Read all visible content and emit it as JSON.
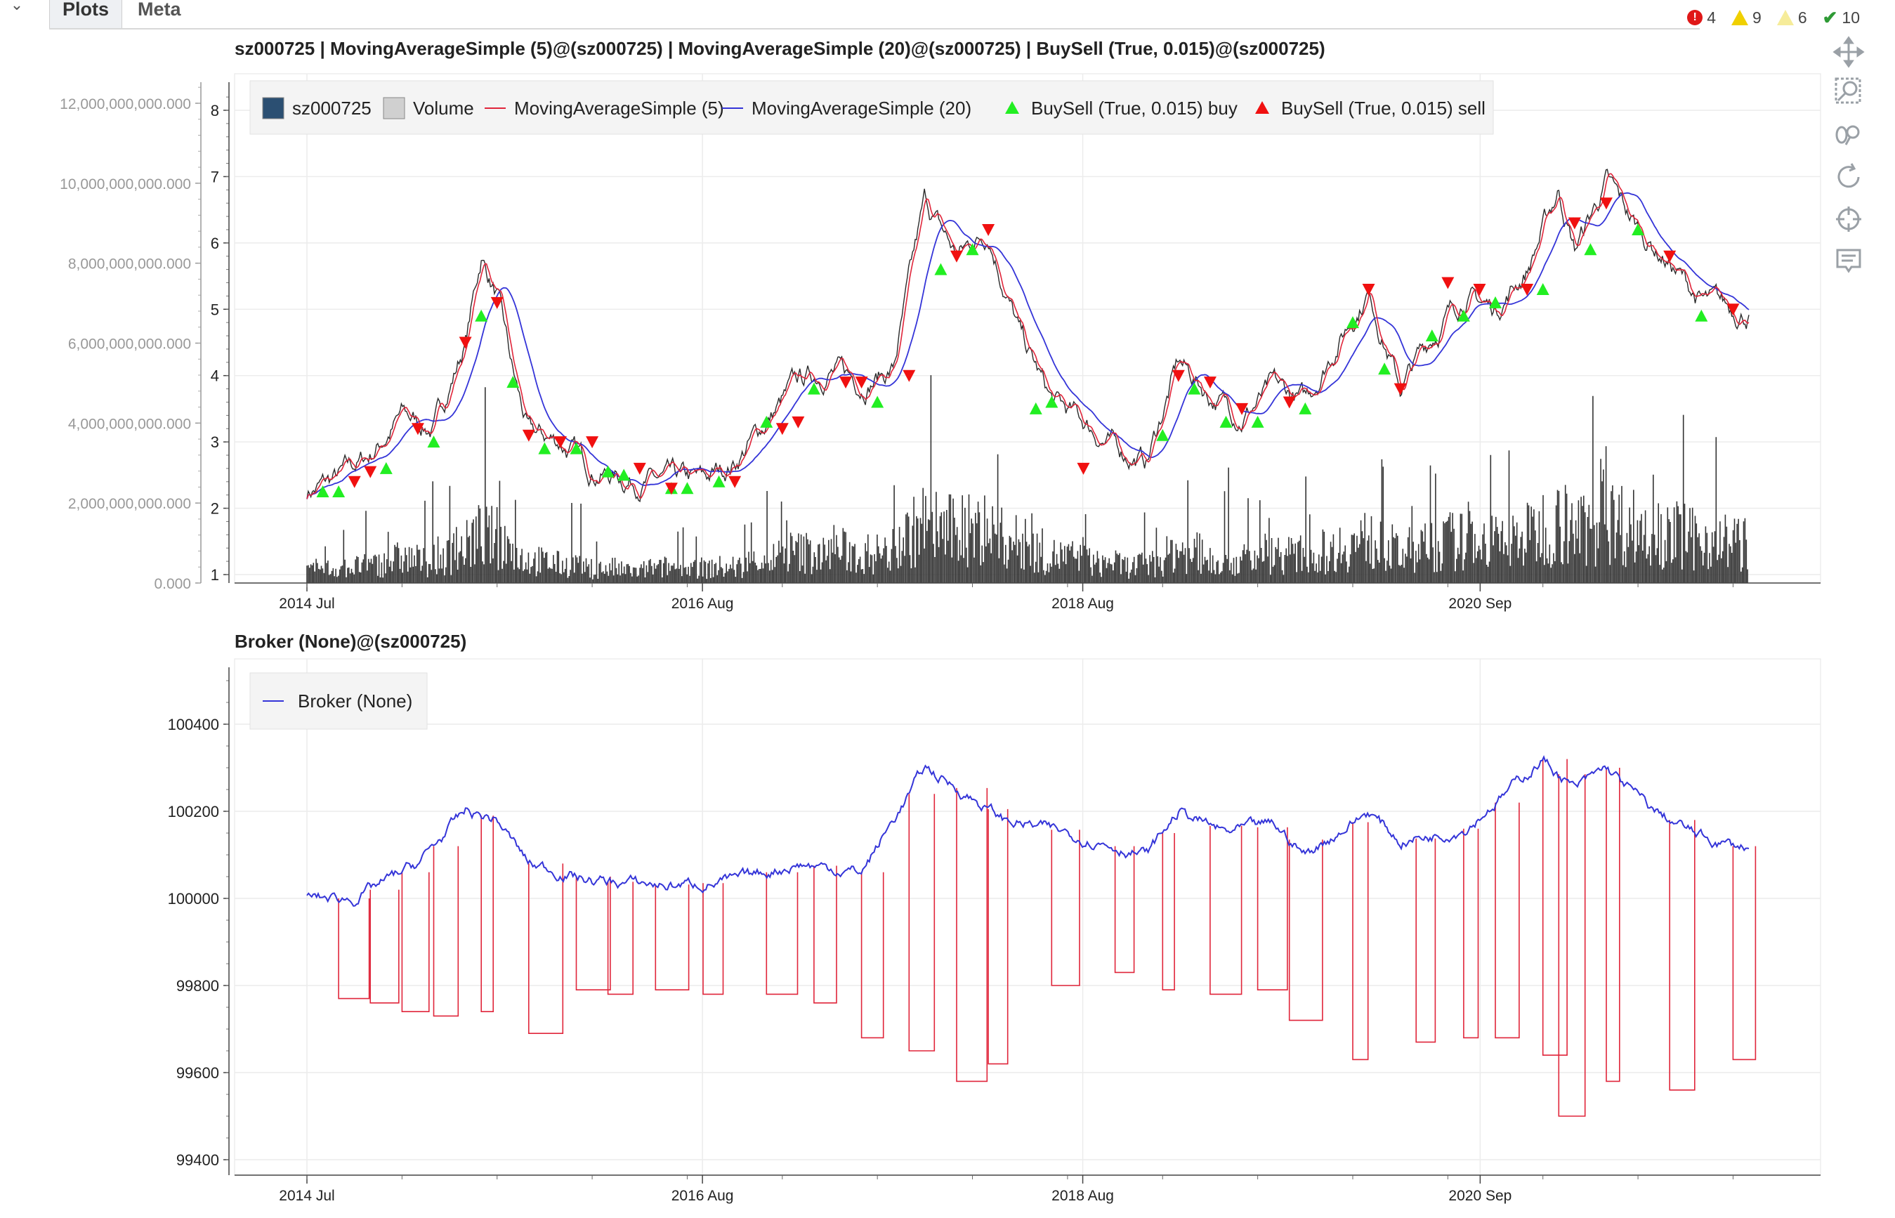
{
  "tabs": [
    "Plots",
    "Meta"
  ],
  "status": [
    {
      "icon": "error-icon",
      "count": "4",
      "color": "#e01818"
    },
    {
      "icon": "warning-icon",
      "count": "9",
      "color": "#f0d000"
    },
    {
      "icon": "info-warning-icon",
      "count": "6",
      "color": "#f6ec9a"
    },
    {
      "icon": "check-icon",
      "count": "10",
      "color": "#2e9a35"
    }
  ],
  "toolbar": [
    "pan-icon",
    "box-zoom-icon",
    "wheel-zoom-icon",
    "reset-icon",
    "crosshair-icon",
    "hover-icon"
  ],
  "plot1": {
    "title": "sz000725 | MovingAverageSimple (5)@(sz000725) | MovingAverageSimple (20)@(sz000725) | BuySell (True, 0.015)@(sz000725)",
    "legend": [
      {
        "label": "sz000725",
        "kind": "box",
        "color": "#2b4f72"
      },
      {
        "label": "Volume",
        "kind": "box",
        "color": "#d0d0d0"
      },
      {
        "label": "MovingAverageSimple (5)",
        "kind": "line",
        "color": "#e0253a"
      },
      {
        "label": "MovingAverageSimple (20)",
        "kind": "line",
        "color": "#3434d8"
      },
      {
        "label": "BuySell (True, 0.015) buy",
        "kind": "up",
        "color": "#22ee22"
      },
      {
        "label": "BuySell (True, 0.015) sell",
        "kind": "down",
        "color": "#f01010"
      }
    ],
    "volume_ticks": [
      "0.000",
      "2,000,000,000.000",
      "4,000,000,000.000",
      "6,000,000,000.000",
      "8,000,000,000.000",
      "10,000,000,000.000",
      "12,000,000,000.000"
    ],
    "price_ticks": [
      "1",
      "2",
      "3",
      "4",
      "5",
      "6",
      "7",
      "8"
    ],
    "x_ticks": [
      "2014 Jul",
      "2016 Aug",
      "2018 Aug",
      "2020 Sep"
    ]
  },
  "plot2": {
    "title": "Broker (None)@(sz000725)",
    "legend": [
      {
        "label": "Broker (None)",
        "color": "#3434d8"
      }
    ],
    "y_ticks": [
      "99400",
      "99600",
      "99800",
      "100000",
      "100200",
      "100400"
    ],
    "x_ticks": [
      "2014 Jul",
      "2016 Aug",
      "2018 Aug",
      "2020 Sep"
    ]
  },
  "chart_data": [
    {
      "type": "line",
      "title": "sz000725 | MovingAverageSimple (5)@(sz000725) | MovingAverageSimple (20)@(sz000725) | BuySell (True, 0.015)@(sz000725)",
      "xlabel": "",
      "ylabel": "",
      "x_range": [
        "2014-07",
        "2022-02"
      ],
      "price_ylim": [
        1,
        8.5
      ],
      "volume_ylim": [
        0,
        12500000000
      ],
      "grid": true,
      "legend_position": "top-left",
      "price_anchors": [
        [
          "2014-07",
          2.25
        ],
        [
          "2014-09",
          2.45
        ],
        [
          "2014-11",
          2.8
        ],
        [
          "2015-01",
          3.4
        ],
        [
          "2015-03",
          3.2
        ],
        [
          "2015-05",
          4.5
        ],
        [
          "2015-06",
          5.8
        ],
        [
          "2015-07",
          5.2
        ],
        [
          "2015-08",
          4.0
        ],
        [
          "2015-09",
          3.1
        ],
        [
          "2015-11",
          3.0
        ],
        [
          "2016-01",
          2.6
        ],
        [
          "2016-03",
          2.45
        ],
        [
          "2016-05",
          2.4
        ],
        [
          "2016-08",
          2.4
        ],
        [
          "2016-10",
          2.7
        ],
        [
          "2016-12",
          3.3
        ],
        [
          "2017-02",
          3.9
        ],
        [
          "2017-04",
          4.1
        ],
        [
          "2017-06",
          3.9
        ],
        [
          "2017-08",
          4.1
        ],
        [
          "2017-10",
          6.6
        ],
        [
          "2017-12",
          5.8
        ],
        [
          "2018-02",
          6.2
        ],
        [
          "2018-04",
          4.6
        ],
        [
          "2018-06",
          3.6
        ],
        [
          "2018-08",
          3.3
        ],
        [
          "2018-10",
          2.9
        ],
        [
          "2018-12",
          2.7
        ],
        [
          "2019-02",
          4.2
        ],
        [
          "2019-04",
          3.7
        ],
        [
          "2019-06",
          3.4
        ],
        [
          "2019-08",
          3.8
        ],
        [
          "2019-10",
          3.6
        ],
        [
          "2019-12",
          4.5
        ],
        [
          "2020-02",
          5.3
        ],
        [
          "2020-04",
          3.8
        ],
        [
          "2020-06",
          4.6
        ],
        [
          "2020-08",
          5.2
        ],
        [
          "2020-10",
          5.0
        ],
        [
          "2020-12",
          5.6
        ],
        [
          "2021-02",
          6.8
        ],
        [
          "2021-03",
          5.9
        ],
        [
          "2021-05",
          6.9
        ],
        [
          "2021-07",
          6.2
        ],
        [
          "2021-09",
          5.7
        ],
        [
          "2021-11",
          5.1
        ],
        [
          "2022-02",
          4.95
        ]
      ],
      "buy_signals": [
        [
          "2014-08",
          2.25
        ],
        [
          "2014-09",
          2.25
        ],
        [
          "2014-12",
          2.6
        ],
        [
          "2015-03",
          3.0
        ],
        [
          "2015-06",
          4.9
        ],
        [
          "2015-08",
          3.9
        ],
        [
          "2015-10",
          2.9
        ],
        [
          "2015-12",
          2.9
        ],
        [
          "2016-02",
          2.55
        ],
        [
          "2016-03",
          2.5
        ],
        [
          "2016-06",
          2.3
        ],
        [
          "2016-07",
          2.3
        ],
        [
          "2016-09",
          2.4
        ],
        [
          "2016-12",
          3.3
        ],
        [
          "2017-03",
          3.8
        ],
        [
          "2017-07",
          3.6
        ],
        [
          "2017-11",
          5.6
        ],
        [
          "2018-01",
          5.9
        ],
        [
          "2018-05",
          3.5
        ],
        [
          "2018-06",
          3.6
        ],
        [
          "2019-01",
          3.1
        ],
        [
          "2019-03",
          3.8
        ],
        [
          "2019-05",
          3.3
        ],
        [
          "2019-07",
          3.3
        ],
        [
          "2019-10",
          3.5
        ],
        [
          "2020-01",
          4.8
        ],
        [
          "2020-03",
          4.1
        ],
        [
          "2020-06",
          4.6
        ],
        [
          "2020-08",
          4.9
        ],
        [
          "2020-10",
          5.1
        ],
        [
          "2021-01",
          5.3
        ],
        [
          "2021-04",
          5.9
        ],
        [
          "2021-07",
          6.2
        ],
        [
          "2021-11",
          4.9
        ]
      ],
      "sell_signals": [
        [
          "2014-10",
          2.4
        ],
        [
          "2014-11",
          2.55
        ],
        [
          "2015-02",
          3.2
        ],
        [
          "2015-05",
          4.5
        ],
        [
          "2015-07",
          5.1
        ],
        [
          "2015-09",
          3.1
        ],
        [
          "2015-11",
          3.0
        ],
        [
          "2016-01",
          3.0
        ],
        [
          "2016-04",
          2.6
        ],
        [
          "2016-06",
          2.3
        ],
        [
          "2016-10",
          2.4
        ],
        [
          "2017-01",
          3.2
        ],
        [
          "2017-02",
          3.3
        ],
        [
          "2017-05",
          3.9
        ],
        [
          "2017-06",
          3.9
        ],
        [
          "2017-09",
          4.0
        ],
        [
          "2017-12",
          5.8
        ],
        [
          "2018-02",
          6.2
        ],
        [
          "2018-08",
          2.6
        ],
        [
          "2019-02",
          4.0
        ],
        [
          "2019-04",
          3.9
        ],
        [
          "2019-06",
          3.5
        ],
        [
          "2019-09",
          3.6
        ],
        [
          "2020-02",
          5.3
        ],
        [
          "2020-04",
          3.8
        ],
        [
          "2020-07",
          5.4
        ],
        [
          "2020-09",
          5.3
        ],
        [
          "2020-12",
          5.3
        ],
        [
          "2021-03",
          6.3
        ],
        [
          "2021-05",
          6.6
        ],
        [
          "2021-09",
          5.8
        ],
        [
          "2022-01",
          5.0
        ]
      ]
    },
    {
      "type": "line",
      "title": "Broker (None)@(sz000725)",
      "xlabel": "",
      "ylabel": "",
      "x_range": [
        "2014-07",
        "2022-02"
      ],
      "ylim": [
        99380,
        100540
      ],
      "grid": true,
      "legend_position": "top-left",
      "series": [
        {
          "name": "Broker (None)",
          "values": [
            [
              "2014-07",
              100000
            ],
            [
              "2014-10",
              100000
            ],
            [
              "2015-02",
              100080
            ],
            [
              "2015-05",
              100200
            ],
            [
              "2015-07",
              100180
            ],
            [
              "2015-09",
              100080
            ],
            [
              "2016-01",
              100040
            ],
            [
              "2016-06",
              100030
            ],
            [
              "2016-10",
              100040
            ],
            [
              "2017-02",
              100080
            ],
            [
              "2017-06",
              100060
            ],
            [
              "2017-10",
              100300
            ],
            [
              "2018-01",
              100230
            ],
            [
              "2018-03",
              100180
            ],
            [
              "2018-07",
              100150
            ],
            [
              "2018-12",
              100100
            ],
            [
              "2019-02",
              100200
            ],
            [
              "2019-05",
              100150
            ],
            [
              "2019-08",
              100170
            ],
            [
              "2019-10",
              100100
            ],
            [
              "2020-02",
              100200
            ],
            [
              "2020-04",
              100130
            ],
            [
              "2020-08",
              100160
            ],
            [
              "2020-10",
              100220
            ],
            [
              "2021-01",
              100320
            ],
            [
              "2021-03",
              100250
            ],
            [
              "2021-05",
              100300
            ],
            [
              "2021-08",
              100200
            ],
            [
              "2021-11",
              100140
            ],
            [
              "2022-01",
              100120
            ]
          ]
        }
      ],
      "drawdown_dips": [
        [
          "2014-09",
          99770
        ],
        [
          "2014-11",
          99760
        ],
        [
          "2015-01",
          99740
        ],
        [
          "2015-03",
          99730
        ],
        [
          "2015-06",
          99740
        ],
        [
          "2015-09",
          99690
        ],
        [
          "2015-12",
          99790
        ],
        [
          "2016-02",
          99780
        ],
        [
          "2016-05",
          99790
        ],
        [
          "2016-08",
          99780
        ],
        [
          "2016-12",
          99780
        ],
        [
          "2017-03",
          99760
        ],
        [
          "2017-06",
          99680
        ],
        [
          "2017-09",
          99650
        ],
        [
          "2017-12",
          99580
        ],
        [
          "2018-02",
          99620
        ],
        [
          "2018-06",
          99800
        ],
        [
          "2018-10",
          99830
        ],
        [
          "2019-01",
          99790
        ],
        [
          "2019-04",
          99780
        ],
        [
          "2019-07",
          99790
        ],
        [
          "2019-09",
          99720
        ],
        [
          "2020-01",
          99630
        ],
        [
          "2020-05",
          99670
        ],
        [
          "2020-08",
          99680
        ],
        [
          "2020-10",
          99680
        ],
        [
          "2021-01",
          99640
        ],
        [
          "2021-02",
          99500
        ],
        [
          "2021-05",
          99580
        ],
        [
          "2021-09",
          99560
        ],
        [
          "2022-01",
          99630
        ]
      ]
    }
  ]
}
